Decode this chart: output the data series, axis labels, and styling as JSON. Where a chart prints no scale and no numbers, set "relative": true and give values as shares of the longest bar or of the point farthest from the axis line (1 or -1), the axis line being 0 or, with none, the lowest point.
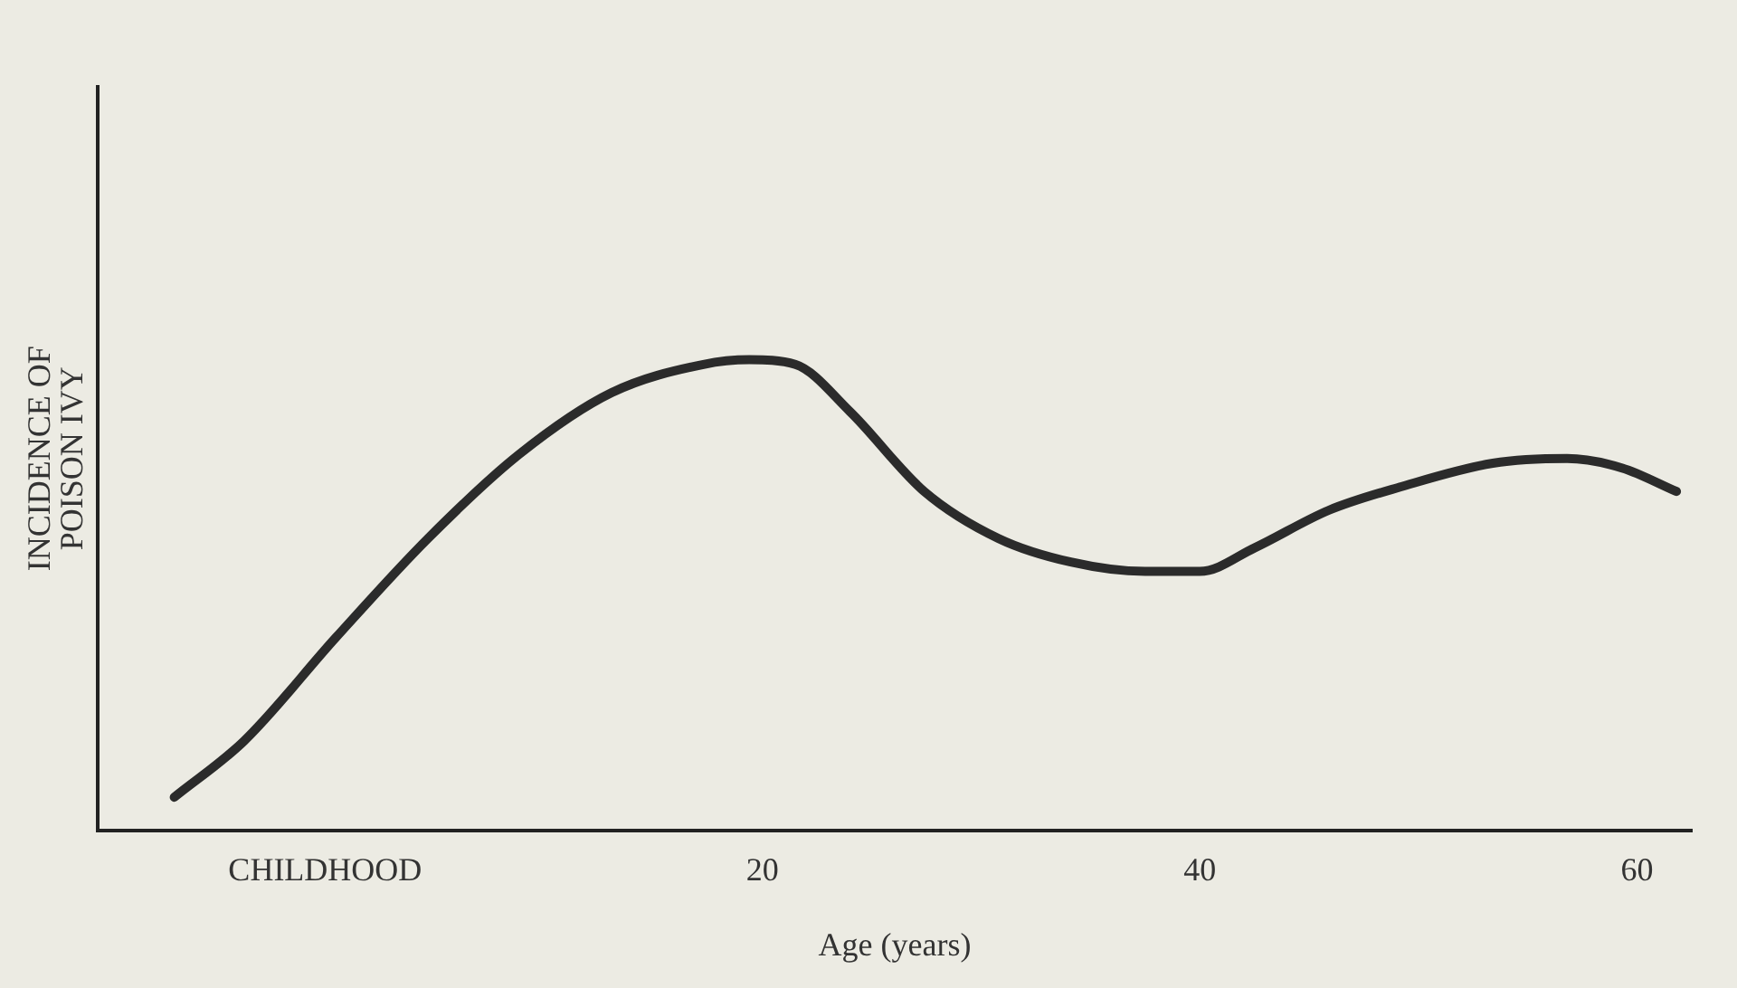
{
  "chart_data": {
    "type": "line",
    "relative": true,
    "xlabel": "Age (years)",
    "ylabel": "INCIDENCE OF\nPOISON IVY",
    "x": [
      -6.9,
      -3.7,
      0.5,
      4.7,
      8.9,
      13.1,
      17.3,
      19.4,
      21.5,
      24,
      27.4,
      30.8,
      34.1,
      37.5,
      40,
      42.5,
      45.9,
      49.2,
      53.4,
      56.8,
      59.3,
      61.8
    ],
    "series": [
      {
        "color": "#2b2b2b",
        "values": [
          0.07,
          0.19,
          0.41,
          0.62,
          0.8,
          0.93,
          0.99,
          1,
          0.99,
          0.89,
          0.72,
          0.62,
          0.57,
          0.55,
          0.55,
          0.6,
          0.68,
          0.73,
          0.78,
          0.79,
          0.77,
          0.72
        ]
      }
    ],
    "xlim": [
      -10.4,
      62.5
    ],
    "xticks": [
      {
        "value": 0,
        "label": "CHILDHOOD"
      },
      20,
      40,
      60
    ],
    "grid": false,
    "legend": false,
    "marker": "none",
    "line_style": "solid"
  }
}
